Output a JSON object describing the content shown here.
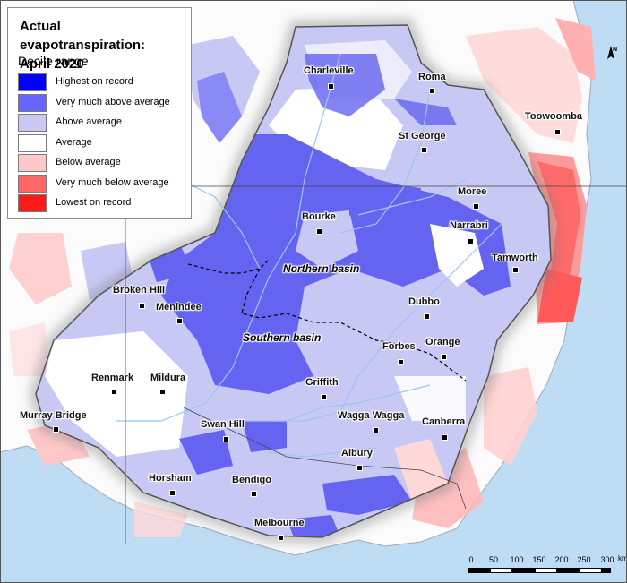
{
  "legend": {
    "title_line1": "Actual evapotranspiration:",
    "title_line2": "April 2020",
    "subtitle": "Decile range",
    "items": [
      {
        "label": "Highest on record",
        "color": "#0000ff"
      },
      {
        "label": "Very much above average",
        "color": "#6666ff"
      },
      {
        "label": "Above average",
        "color": "#c8c8f5"
      },
      {
        "label": "Average",
        "color": "#ffffff"
      },
      {
        "label": "Below average",
        "color": "#ffc8c8"
      },
      {
        "label": "Very much below average",
        "color": "#ff6666"
      },
      {
        "label": "Lowest on record",
        "color": "#ff1a1a"
      }
    ]
  },
  "basins": {
    "northern": "Northern basin",
    "southern": "Southern basin"
  },
  "towns": {
    "charleville": "Charleville",
    "roma": "Roma",
    "toowoomba": "Toowoomba",
    "st_george": "St George",
    "moree": "Moree",
    "bourke": "Bourke",
    "narrabri": "Narrabri",
    "tamworth": "Tamworth",
    "broken_hill": "Broken Hill",
    "menindee": "Menindee",
    "dubbo": "Dubbo",
    "forbes": "Forbes",
    "orange": "Orange",
    "renmark": "Renmark",
    "mildura": "Mildura",
    "griffith": "Griffith",
    "wagga_wagga": "Wagga Wagga",
    "murray_bridge": "Murray Bridge",
    "swan_hill": "Swan Hill",
    "canberra": "Canberra",
    "albury": "Albury",
    "horsham": "Horsham",
    "bendigo": "Bendigo",
    "melbourne": "Melbourne"
  },
  "scale": {
    "ticks": [
      "0",
      "50",
      "100",
      "150",
      "200",
      "250",
      "300"
    ],
    "unit": "km"
  },
  "north_label": "N",
  "colors": {
    "sea": "#bfdcf5",
    "land": "#ffffff",
    "basin_outline": "#6f6f6f",
    "rivers": "#9ec6ea"
  }
}
